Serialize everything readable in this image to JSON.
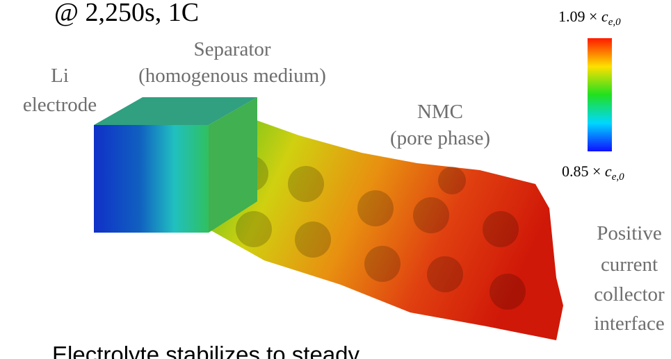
{
  "title": "@ 2,250s, 1C",
  "labels": {
    "separator": [
      "Separator",
      "(homogenous medium)"
    ],
    "li_electrode": [
      "Li",
      "electrode"
    ],
    "nmc": [
      "NMC",
      "(pore phase)"
    ],
    "collector": [
      "Positive",
      "current",
      "collector",
      "interface"
    ]
  },
  "colorbar": {
    "max": {
      "coef": "1.09 ×",
      "symbol": "c",
      "subscript": "e,0"
    },
    "min": {
      "coef": "0.85 ×",
      "symbol": "c",
      "subscript": "e,0"
    }
  },
  "caption": "Electrolyte stabilizes to steady"
}
